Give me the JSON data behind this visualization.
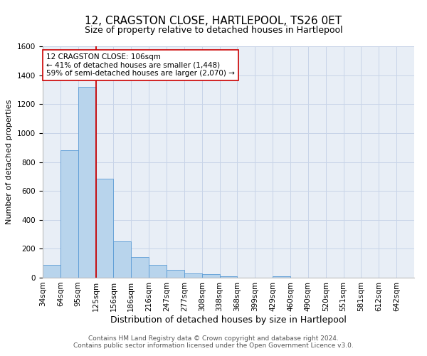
{
  "title": "12, CRAGSTON CLOSE, HARTLEPOOL, TS26 0ET",
  "subtitle": "Size of property relative to detached houses in Hartlepool",
  "xlabel": "Distribution of detached houses by size in Hartlepool",
  "ylabel": "Number of detached properties",
  "bar_values": [
    88,
    880,
    1320,
    685,
    250,
    143,
    88,
    55,
    30,
    25,
    10,
    0,
    0,
    10,
    0,
    0,
    0,
    0,
    0,
    0,
    0
  ],
  "bar_labels": [
    "34sqm",
    "64sqm",
    "95sqm",
    "125sqm",
    "156sqm",
    "186sqm",
    "216sqm",
    "247sqm",
    "277sqm",
    "308sqm",
    "338sqm",
    "368sqm",
    "399sqm",
    "429sqm",
    "460sqm",
    "490sqm",
    "520sqm",
    "551sqm",
    "581sqm",
    "612sqm",
    "642sqm"
  ],
  "bar_color": "#b8d4ec",
  "bar_edge_color": "#5b9bd5",
  "grid_color": "#c8d4e8",
  "bg_color": "#e8eef6",
  "vline_x": 3.0,
  "vline_color": "#cc0000",
  "annotation_text": "12 CRAGSTON CLOSE: 106sqm\n← 41% of detached houses are smaller (1,448)\n59% of semi-detached houses are larger (2,070) →",
  "ylim": [
    0,
    1600
  ],
  "yticks": [
    0,
    200,
    400,
    600,
    800,
    1000,
    1200,
    1400,
    1600
  ],
  "footer_line1": "Contains HM Land Registry data © Crown copyright and database right 2024.",
  "footer_line2": "Contains public sector information licensed under the Open Government Licence v3.0.",
  "title_fontsize": 11,
  "subtitle_fontsize": 9,
  "xlabel_fontsize": 9,
  "ylabel_fontsize": 8,
  "tick_fontsize": 7.5,
  "footer_fontsize": 6.5
}
